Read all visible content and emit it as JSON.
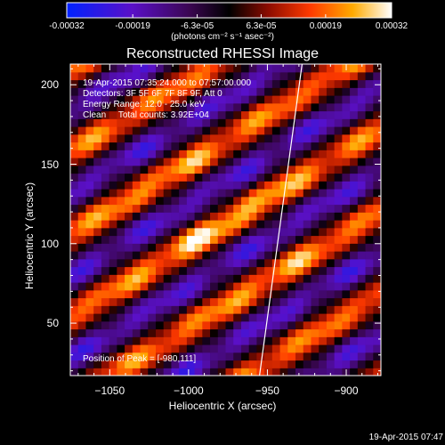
{
  "colorbar": {
    "ticks": [
      "-0.00032",
      "-0.00019",
      "-6.3e-05",
      "6.3e-05",
      "0.00019",
      "0.00032"
    ],
    "tick_values": [
      -0.00032,
      -0.00019,
      -6.3e-05,
      6.3e-05,
      0.00019,
      0.00032
    ],
    "range": [
      -0.00032,
      0.00032
    ],
    "unit": "(photons cm⁻² s⁻¹ asec⁻²)"
  },
  "title": "Reconstructed RHESSI Image",
  "info": {
    "time": "19-Apr-2015 07:35:24.000 to 07:57:00.000",
    "detectors": "Detectors: 3F 5F 6F 7F 8F 9F, Att 0",
    "energy": "Energy Range: 12.0 - 25.0 keV",
    "clean": "Clean     Total counts: 3.92E+04"
  },
  "peak_label": "Position of Peak = [-980,111]",
  "timestamp": "19-Apr-2015 07:47",
  "colors": {
    "background": "#000000",
    "text": "#ffffff",
    "limb_line": "#ffffff"
  },
  "chart_data": {
    "type": "heatmap",
    "title": "Reconstructed RHESSI Image",
    "xlabel": "Heliocentric X (arcsec)",
    "ylabel": "Heliocentric Y (arcsec)",
    "xlim": [
      -1075,
      -878
    ],
    "ylim": [
      17,
      213
    ],
    "xticks": [
      -1050,
      -1000,
      -950,
      -900
    ],
    "yticks": [
      50,
      100,
      150,
      200
    ],
    "xtick_labels": [
      "−1050",
      "−1000",
      "−950",
      "−900"
    ],
    "ytick_labels": [
      "50",
      "100",
      "150",
      "200"
    ],
    "colormap": "blue-purple-black-red-yellow-white",
    "peak": {
      "x": -980,
      "y": 111
    },
    "limb_line": [
      [
        -955,
        17
      ],
      [
        -928,
        213
      ]
    ],
    "band_orientation": "diagonal, rising to upper right"
  }
}
